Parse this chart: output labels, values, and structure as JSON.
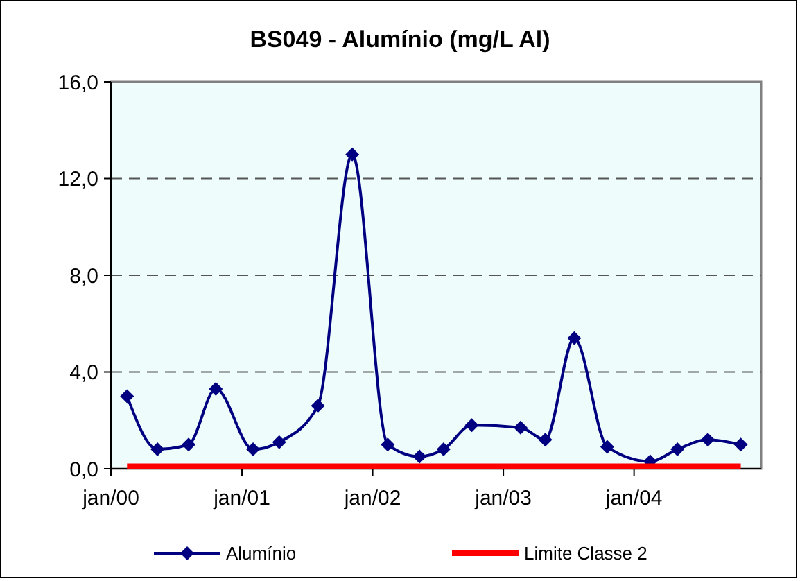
{
  "chart_data": {
    "type": "line",
    "title": "BS049 - Alumínio (mg/L Al)",
    "xlim": [
      "2000-01-01",
      "2004-12-21"
    ],
    "xticks": [
      {
        "value": "2000-01-01",
        "label": "jan/00"
      },
      {
        "value": "2001-01-01",
        "label": "jan/01"
      },
      {
        "value": "2002-01-01",
        "label": "jan/02"
      },
      {
        "value": "2003-01-01",
        "label": "jan/03"
      },
      {
        "value": "2004-01-01",
        "label": "jan/04"
      }
    ],
    "ylim": [
      0,
      16
    ],
    "yticks": [
      {
        "value": 0,
        "label": "0,0"
      },
      {
        "value": 4,
        "label": "4,0"
      },
      {
        "value": 8,
        "label": "8,0"
      },
      {
        "value": 12,
        "label": "12,0"
      },
      {
        "value": 16,
        "label": "16,0"
      }
    ],
    "grid": "y",
    "legend": "bottom",
    "series": [
      {
        "name": "Alumínio",
        "color": "#000080",
        "marker": "diamond",
        "line_style": "solid",
        "x": [
          "2000-02-15",
          "2000-05-10",
          "2000-08-05",
          "2000-10-20",
          "2001-02-01",
          "2001-04-15",
          "2001-08-01",
          "2001-11-05",
          "2002-02-12",
          "2002-05-12",
          "2002-07-18",
          "2002-10-05",
          "2003-02-18",
          "2003-04-28",
          "2003-07-18",
          "2003-10-18",
          "2004-02-15",
          "2004-05-01",
          "2004-07-25",
          "2004-10-25"
        ],
        "values": [
          3.0,
          0.8,
          1.0,
          3.3,
          0.8,
          1.1,
          2.6,
          13.0,
          1.0,
          0.5,
          0.8,
          1.8,
          1.7,
          1.2,
          5.4,
          0.9,
          0.3,
          0.8,
          1.2,
          1.0
        ]
      },
      {
        "name": "Limite Classe 2",
        "color": "#ff0000",
        "marker": "none",
        "line_style": "solid",
        "x": [
          "2000-02-15",
          "2004-10-25"
        ],
        "values": [
          0.1,
          0.1
        ]
      }
    ]
  }
}
